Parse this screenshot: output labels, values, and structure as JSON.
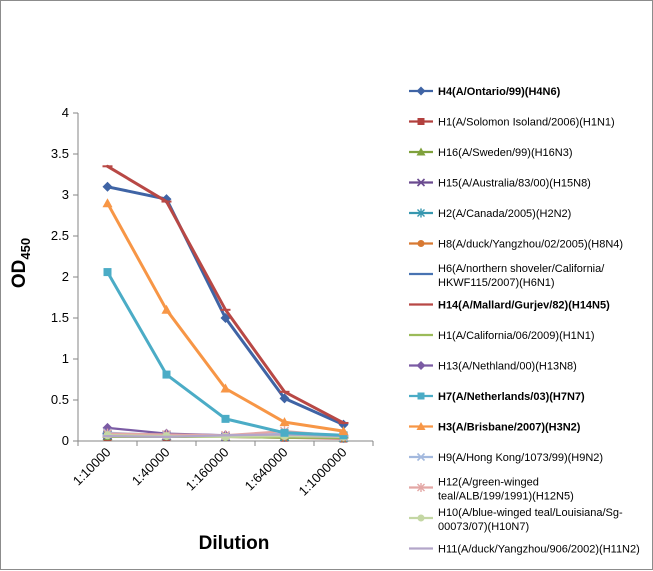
{
  "chart_data": {
    "type": "line",
    "xlabel": "Dilution",
    "ylabel": {
      "main": "OD",
      "sub": "450"
    },
    "categories": [
      "1:10000",
      "1:40000",
      "1:160000",
      "1:640000",
      "1:1000000"
    ],
    "ylim": [
      0,
      4
    ],
    "yticks": [
      "0",
      "0.5",
      "1",
      "1.5",
      "2",
      "2.5",
      "3",
      "3.5",
      "4"
    ],
    "grid": false,
    "legend_position": "right",
    "series": [
      {
        "name": [
          "H4(A/Ontario/99)(H4N6)"
        ],
        "bold": true,
        "color": "#3F64A5",
        "marker": "diamond",
        "values": [
          3.1,
          2.95,
          1.5,
          0.52,
          0.2
        ]
      },
      {
        "name": [
          "H1(A/Solomon Isoland/2006)(H1N1)"
        ],
        "bold": false,
        "color": "#B2403E",
        "marker": "square",
        "values": [
          0.05,
          0.05,
          0.05,
          0.04,
          0.03
        ]
      },
      {
        "name": [
          "H16(A/Sweden/99)(H16N3)"
        ],
        "bold": false,
        "color": "#7FA13C",
        "marker": "triangle",
        "values": [
          0.06,
          0.06,
          0.05,
          0.05,
          0.04
        ]
      },
      {
        "name": [
          "H15(A/Australia/83/00)(H15N8)"
        ],
        "bold": false,
        "color": "#6A4A8F",
        "marker": "x",
        "values": [
          0.07,
          0.06,
          0.05,
          0.05,
          0.04
        ]
      },
      {
        "name": [
          "H2(A/Canada/2005)(H2N2)"
        ],
        "bold": false,
        "color": "#3797AF",
        "marker": "star",
        "values": [
          0.08,
          0.07,
          0.06,
          0.05,
          0.04
        ]
      },
      {
        "name": [
          "H8(A/duck/Yangzhou/02/2005)(H8N4)"
        ],
        "bold": false,
        "color": "#D87932",
        "marker": "circle",
        "values": [
          0.08,
          0.07,
          0.06,
          0.05,
          0.04
        ]
      },
      {
        "name": [
          "H6(A/northern shoveler/California/",
          "HKWF115/2007)(H6N1)"
        ],
        "bold": false,
        "color": "#4873B2",
        "marker": "dash",
        "values": [
          0.09,
          0.08,
          0.07,
          0.06,
          0.05
        ]
      },
      {
        "name": [
          "H14(A/Mallard/Gurjev/82)(H14N5)"
        ],
        "bold": true,
        "color": "#B84845",
        "marker": "dash",
        "values": [
          3.35,
          2.92,
          1.6,
          0.6,
          0.22
        ]
      },
      {
        "name": [
          "H1(A/California/06/2009)(H1N1)"
        ],
        "bold": false,
        "color": "#9BBB59",
        "marker": "dash",
        "values": [
          0.05,
          0.05,
          0.05,
          0.04,
          0.04
        ]
      },
      {
        "name": [
          "H13(A/Nethland/00)(H13N8)"
        ],
        "bold": false,
        "color": "#7B5BA4",
        "marker": "diamond",
        "values": [
          0.16,
          0.09,
          0.07,
          0.06,
          0.05
        ]
      },
      {
        "name": [
          "H7(A/Netherlands/03)(H7N7)"
        ],
        "bold": true,
        "color": "#4BACC6",
        "marker": "square",
        "values": [
          2.06,
          0.81,
          0.27,
          0.1,
          0.07
        ]
      },
      {
        "name": [
          "H3(A/Brisbane/2007)(H3N2)"
        ],
        "bold": true,
        "color": "#F79646",
        "marker": "triangle",
        "values": [
          2.9,
          1.6,
          0.64,
          0.23,
          0.12
        ]
      },
      {
        "name": [
          "H9(A/Hong Kong/1073/99)(H9N2)"
        ],
        "bold": false,
        "color": "#A3B9DE",
        "marker": "x",
        "values": [
          0.1,
          0.07,
          0.06,
          0.09,
          0.05
        ]
      },
      {
        "name": [
          "H12(A/green-winged",
          "teal/ALB/199/1991)(H12N5)"
        ],
        "bold": false,
        "color": "#E3A7A5",
        "marker": "star",
        "values": [
          0.09,
          0.08,
          0.07,
          0.12,
          0.06
        ]
      },
      {
        "name": [
          "H10(A/blue-winged teal/Louisiana/Sg-",
          "00073/07)(H10N7)"
        ],
        "bold": false,
        "color": "#C4D7A4",
        "marker": "circle",
        "values": [
          0.07,
          0.06,
          0.05,
          0.06,
          0.05
        ]
      },
      {
        "name": [
          "H11(A/duck/Yangzhou/906/2002)(H11N2)"
        ],
        "bold": false,
        "color": "#B3A6C9",
        "marker": "dash",
        "values": [
          0.06,
          0.05,
          0.07,
          0.08,
          0.06
        ]
      }
    ]
  }
}
